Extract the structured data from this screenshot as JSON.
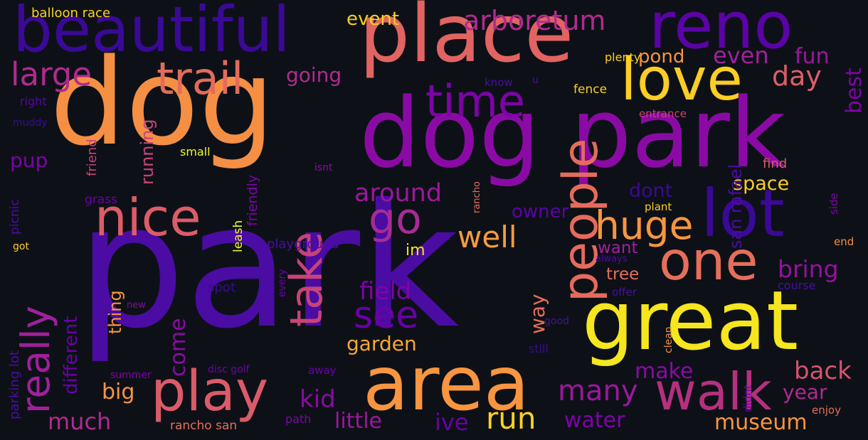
{
  "wordcloud": {
    "background": "#0d1117",
    "words": [
      {
        "text": "park",
        "color": "#4a0ca3",
        "vertical": false
      },
      {
        "text": "dog",
        "color": "#f48f44",
        "vertical": false
      },
      {
        "text": "dog park",
        "color": "#8b0aa5",
        "vertical": false
      },
      {
        "text": "place",
        "color": "#e16462",
        "vertical": false
      },
      {
        "text": "great",
        "color": "#f5e61f",
        "vertical": false
      },
      {
        "text": "beautiful",
        "color": "#3a0996",
        "vertical": false
      },
      {
        "text": "reno",
        "color": "#5b03a6",
        "vertical": false
      },
      {
        "text": "lot",
        "color": "#3a0996",
        "vertical": false
      },
      {
        "text": "area",
        "color": "#f89540",
        "vertical": false
      },
      {
        "text": "love",
        "color": "#fccd25",
        "vertical": false
      },
      {
        "text": "walk",
        "color": "#b5307f",
        "vertical": false
      },
      {
        "text": "one",
        "color": "#e66e5a",
        "vertical": false
      },
      {
        "text": "play",
        "color": "#da5b69",
        "vertical": false
      },
      {
        "text": "nice",
        "color": "#dc5c68",
        "vertical": false
      },
      {
        "text": "trail",
        "color": "#e36b5c",
        "vertical": false
      },
      {
        "text": "time",
        "color": "#7e03a8",
        "vertical": false
      },
      {
        "text": "people",
        "color": "#e56b5d",
        "vertical": true
      },
      {
        "text": "take",
        "color": "#c8437a",
        "vertical": true
      },
      {
        "text": "really",
        "color": "#a0209c",
        "vertical": true
      },
      {
        "text": "go",
        "color": "#a52c96",
        "vertical": false
      },
      {
        "text": "huge",
        "color": "#f89540",
        "vertical": false
      },
      {
        "text": "see",
        "color": "#6a00a8",
        "vertical": false
      },
      {
        "text": "large",
        "color": "#b12a90",
        "vertical": false
      },
      {
        "text": "well",
        "color": "#f89c3e",
        "vertical": false
      },
      {
        "text": "arboretum",
        "color": "#b12a90",
        "vertical": false
      },
      {
        "text": "many",
        "color": "#9c179e",
        "vertical": false
      },
      {
        "text": "run",
        "color": "#fdd225",
        "vertical": false
      },
      {
        "text": "day",
        "color": "#dd5e66",
        "vertical": false
      },
      {
        "text": "reno",
        "color": "#5b03a6",
        "vertical": false
      },
      {
        "text": "around",
        "color": "#9c179e",
        "vertical": false
      },
      {
        "text": "even",
        "color": "#a0209c",
        "vertical": false
      },
      {
        "text": "fun",
        "color": "#9c179e",
        "vertical": false
      },
      {
        "text": "back",
        "color": "#d5546e",
        "vertical": false
      },
      {
        "text": "field",
        "color": "#7e03a8",
        "vertical": false
      },
      {
        "text": "bring",
        "color": "#9511a1",
        "vertical": false
      },
      {
        "text": "museum",
        "color": "#f89540",
        "vertical": false
      },
      {
        "text": "garden",
        "color": "#fca636",
        "vertical": false
      },
      {
        "text": "little",
        "color": "#9c179e",
        "vertical": false
      },
      {
        "text": "kid",
        "color": "#8b0aa5",
        "vertical": false
      },
      {
        "text": "ive",
        "color": "#6a00a8",
        "vertical": false
      },
      {
        "text": "water",
        "color": "#7e03a8",
        "vertical": false
      },
      {
        "text": "year",
        "color": "#b12a90",
        "vertical": false
      },
      {
        "text": "make",
        "color": "#8b0aa5",
        "vertical": false
      },
      {
        "text": "big",
        "color": "#f89540",
        "vertical": false
      },
      {
        "text": "much",
        "color": "#b12a90",
        "vertical": false
      },
      {
        "text": "event",
        "color": "#fccd25",
        "vertical": false
      },
      {
        "text": "trail",
        "color": "#e36b5c",
        "vertical": false
      },
      {
        "text": "going",
        "color": "#b12a90",
        "vertical": false
      },
      {
        "text": "pond",
        "color": "#f89540",
        "vertical": false
      },
      {
        "text": "space",
        "color": "#fccd25",
        "vertical": false
      },
      {
        "text": "dont",
        "color": "#3a0996",
        "vertical": false
      },
      {
        "text": "owner",
        "color": "#5b03a6",
        "vertical": false
      },
      {
        "text": "im",
        "color": "#f5e61f",
        "vertical": false
      },
      {
        "text": "want",
        "color": "#a0209c",
        "vertical": false
      },
      {
        "text": "tree",
        "color": "#e66e5a",
        "vertical": false
      },
      {
        "text": "pup",
        "color": "#7e03a8",
        "vertical": false
      },
      {
        "text": "best",
        "color": "#7e03a8",
        "vertical": true
      },
      {
        "text": "way",
        "color": "#e66e5a",
        "vertical": true
      },
      {
        "text": "come",
        "color": "#8b0aa5",
        "vertical": true
      },
      {
        "text": "thing",
        "color": "#f89540",
        "vertical": true
      },
      {
        "text": "different",
        "color": "#6a00a8",
        "vertical": true
      },
      {
        "text": "running",
        "color": "#c8437a",
        "vertical": true
      },
      {
        "text": "san rafael",
        "color": "#4a0ca3",
        "vertical": true
      },
      {
        "text": "friendly",
        "color": "#7e03a8",
        "vertical": true
      },
      {
        "text": "leash",
        "color": "#f0f921",
        "vertical": true
      },
      {
        "text": "friend",
        "color": "#c8437a",
        "vertical": true
      },
      {
        "text": "picnic",
        "color": "#4a0ca3",
        "vertical": true
      },
      {
        "text": "parking lot",
        "color": "#4a0ca3",
        "vertical": true
      },
      {
        "text": "balloon race",
        "color": "#fdd225",
        "vertical": false
      },
      {
        "text": "plenty",
        "color": "#fccd25",
        "vertical": false
      },
      {
        "text": "fence",
        "color": "#fccd25",
        "vertical": false
      },
      {
        "text": "know",
        "color": "#4a0ca3",
        "vertical": false
      },
      {
        "text": "entrance",
        "color": "#c8437a",
        "vertical": false
      },
      {
        "text": "right",
        "color": "#5b03a6",
        "vertical": false
      },
      {
        "text": "muddy",
        "color": "#3a0996",
        "vertical": false
      },
      {
        "text": "small",
        "color": "#f0f921",
        "vertical": false
      },
      {
        "text": "grass",
        "color": "#6a00a8",
        "vertical": false
      },
      {
        "text": "isnt",
        "color": "#8b0aa5",
        "vertical": false
      },
      {
        "text": "find",
        "color": "#dc5c68",
        "vertical": false
      },
      {
        "text": "plant",
        "color": "#fccd25",
        "vertical": false
      },
      {
        "text": "playground",
        "color": "#4a0ca3",
        "vertical": false
      },
      {
        "text": "got",
        "color": "#fccd25",
        "vertical": false
      },
      {
        "text": "always",
        "color": "#4a0ca3",
        "vertical": false
      },
      {
        "text": "end",
        "color": "#f48f44",
        "vertical": false
      },
      {
        "text": "spot",
        "color": "#3a0996",
        "vertical": false
      },
      {
        "text": "offer",
        "color": "#4a0ca3",
        "vertical": false
      },
      {
        "text": "course",
        "color": "#4a0ca3",
        "vertical": false
      },
      {
        "text": "new",
        "color": "#8b0aa5",
        "vertical": false
      },
      {
        "text": "good",
        "color": "#4a0ca3",
        "vertical": false
      },
      {
        "text": "still",
        "color": "#3a0996",
        "vertical": false
      },
      {
        "text": "summer",
        "color": "#7e03a8",
        "vertical": false
      },
      {
        "text": "disc golf",
        "color": "#6a00a8",
        "vertical": false
      },
      {
        "text": "away",
        "color": "#6a00a8",
        "vertical": false
      },
      {
        "text": "enjoy",
        "color": "#e66e5a",
        "vertical": false
      },
      {
        "text": "rancho san",
        "color": "#e66e5a",
        "vertical": false
      },
      {
        "text": "path",
        "color": "#7e03a8",
        "vertical": false
      },
      {
        "text": "rancho",
        "color": "#e66e5a",
        "vertical": true
      },
      {
        "text": "every",
        "color": "#6a00a8",
        "vertical": true
      },
      {
        "text": "clean",
        "color": "#f48f44",
        "vertical": true
      },
      {
        "text": "didnt",
        "color": "#6a00a8",
        "vertical": true
      },
      {
        "text": "side",
        "color": "#7e03a8",
        "vertical": true
      },
      {
        "text": "u",
        "color": "#4a0ca3",
        "vertical": false
      }
    ]
  }
}
